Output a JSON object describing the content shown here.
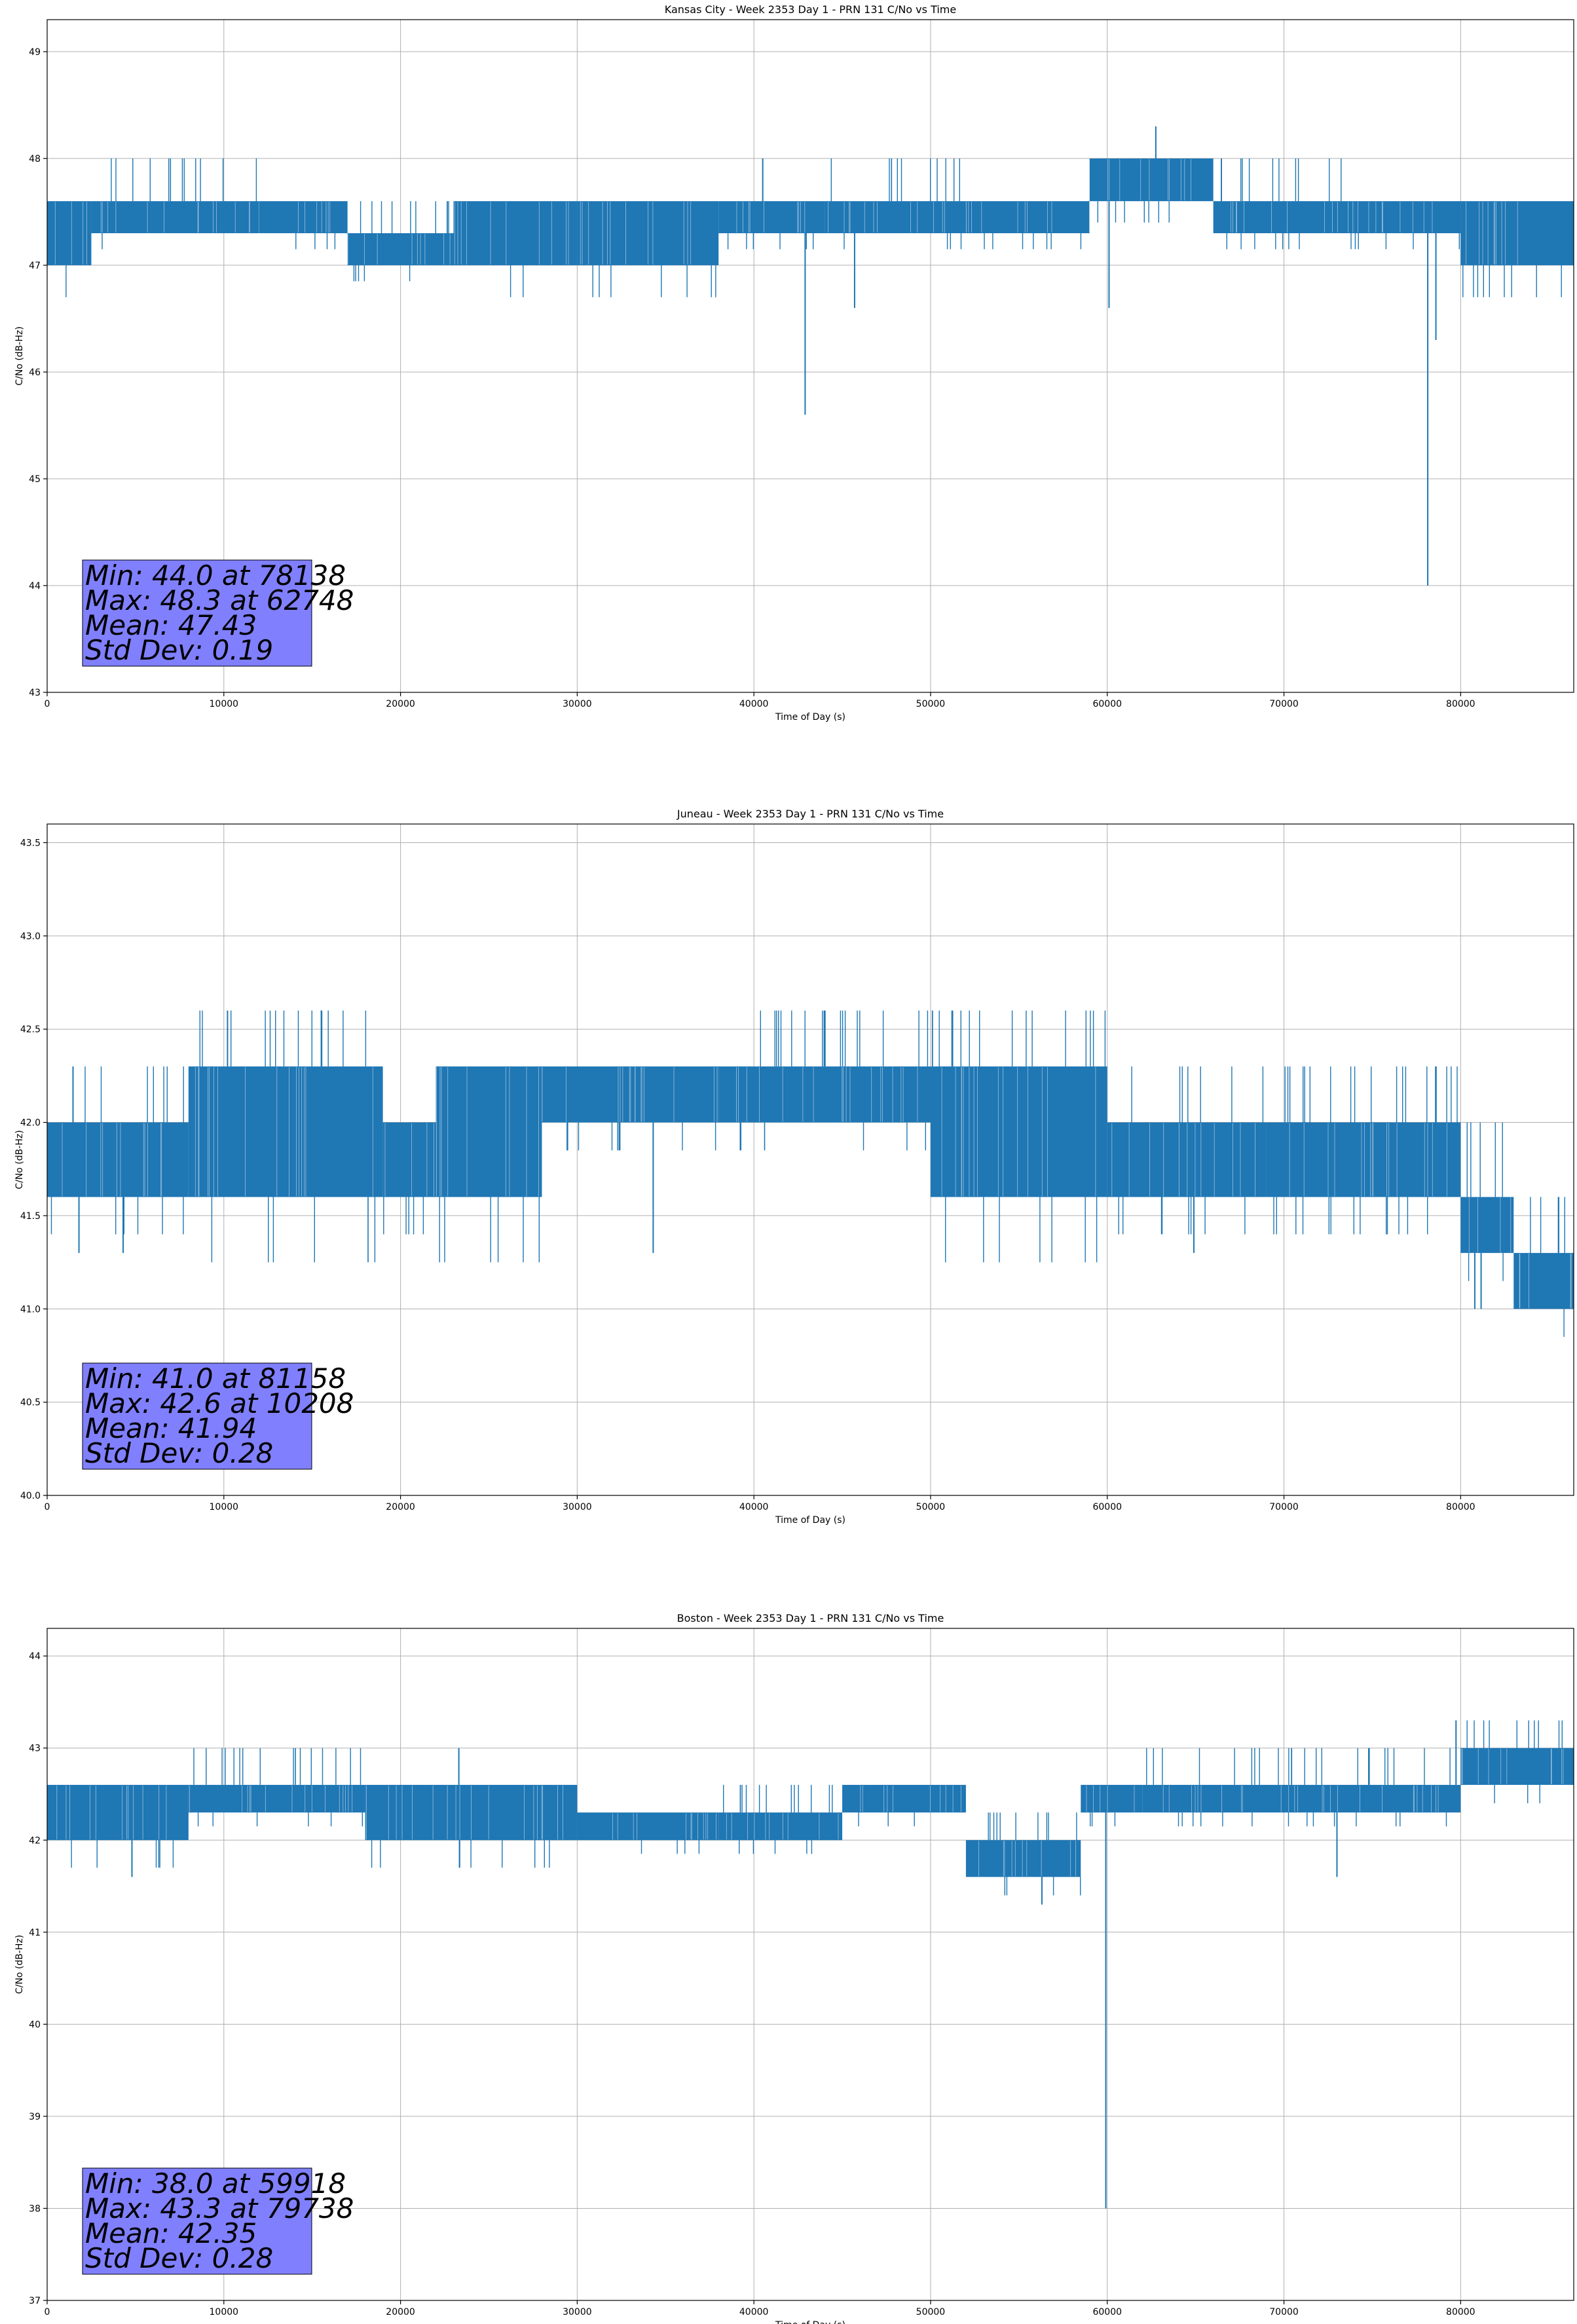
{
  "chart_data": [
    {
      "type": "line",
      "title": "Kansas City - Week 2353 Day 1 - PRN 131 C/No vs Time",
      "xlabel": "Time of Day (s)",
      "ylabel": "C/No (dB-Hz)",
      "xlim": [
        0,
        86400
      ],
      "ylim": [
        43,
        49.3
      ],
      "xticks": [
        0,
        10000,
        20000,
        30000,
        40000,
        50000,
        60000,
        70000,
        80000
      ],
      "yticks": [
        43,
        44,
        45,
        46,
        47,
        48,
        49
      ],
      "grid": true,
      "color": "#1f77b4",
      "band_segments": [
        {
          "x": [
            0,
            2500
          ],
          "y": [
            47.0,
            47.6
          ],
          "peak": 47.6
        },
        {
          "x": [
            2500,
            12000
          ],
          "y": [
            47.3,
            47.6
          ],
          "peak": 48.0
        },
        {
          "x": [
            12000,
            17000
          ],
          "y": [
            47.3,
            47.6
          ],
          "peak": 47.6
        },
        {
          "x": [
            17000,
            23000
          ],
          "y": [
            47.0,
            47.3
          ],
          "peak": 47.6
        },
        {
          "x": [
            23000,
            30000
          ],
          "y": [
            47.0,
            47.6
          ],
          "peak": 47.6
        },
        {
          "x": [
            30000,
            38000
          ],
          "y": [
            47.0,
            47.6
          ],
          "peak": 47.6
        },
        {
          "x": [
            38000,
            44000
          ],
          "y": [
            47.3,
            47.6
          ],
          "peak": 47.6
        },
        {
          "x": [
            44000,
            52000
          ],
          "y": [
            47.3,
            47.6
          ],
          "peak": 48.0
        },
        {
          "x": [
            52000,
            59000
          ],
          "y": [
            47.3,
            47.6
          ],
          "peak": 47.6
        },
        {
          "x": [
            59000,
            66000
          ],
          "y": [
            47.6,
            48.0
          ],
          "peak": 48.0
        },
        {
          "x": [
            66000,
            74000
          ],
          "y": [
            47.3,
            47.6
          ],
          "peak": 48.0
        },
        {
          "x": [
            74000,
            80000
          ],
          "y": [
            47.3,
            47.6
          ],
          "peak": 47.6
        },
        {
          "x": [
            80000,
            86400
          ],
          "y": [
            47.0,
            47.6
          ],
          "peak": 47.6
        }
      ],
      "spikes": [
        {
          "x": 42900,
          "y": 45.6
        },
        {
          "x": 45700,
          "y": 46.6
        },
        {
          "x": 40500,
          "y": 48.0
        },
        {
          "x": 60100,
          "y": 46.6
        },
        {
          "x": 62748,
          "y": 48.3
        },
        {
          "x": 78138,
          "y": 44.0
        },
        {
          "x": 78600,
          "y": 46.3
        }
      ],
      "stats": {
        "min": "Min: 44.0 at 78138",
        "max": "Max: 48.3 at 62748",
        "mean": "Mean: 47.43",
        "std": "Std Dev: 0.19"
      }
    },
    {
      "type": "line",
      "title": "Juneau - Week 2353 Day 1 - PRN 131 C/No vs Time",
      "xlabel": "Time of Day (s)",
      "ylabel": "C/No (dB-Hz)",
      "xlim": [
        0,
        86400
      ],
      "ylim": [
        40,
        43.6
      ],
      "xticks": [
        0,
        10000,
        20000,
        30000,
        40000,
        50000,
        60000,
        70000,
        80000
      ],
      "yticks": [
        40.0,
        40.5,
        41.0,
        41.5,
        42.0,
        42.5,
        43.0,
        43.5
      ],
      "grid": true,
      "color": "#1f77b4",
      "band_segments": [
        {
          "x": [
            0,
            8000
          ],
          "y": [
            41.6,
            42.0
          ],
          "peak": 42.3
        },
        {
          "x": [
            8000,
            19000
          ],
          "y": [
            41.6,
            42.3
          ],
          "peak": 42.6
        },
        {
          "x": [
            19000,
            22000
          ],
          "y": [
            41.6,
            42.0
          ],
          "peak": 42.0
        },
        {
          "x": [
            22000,
            28000
          ],
          "y": [
            41.6,
            42.3
          ],
          "peak": 42.3
        },
        {
          "x": [
            28000,
            38000
          ],
          "y": [
            42.0,
            42.3
          ],
          "peak": 42.3
        },
        {
          "x": [
            38000,
            50000
          ],
          "y": [
            42.0,
            42.3
          ],
          "peak": 42.6
        },
        {
          "x": [
            50000,
            60000
          ],
          "y": [
            41.6,
            42.3
          ],
          "peak": 42.6
        },
        {
          "x": [
            60000,
            69000
          ],
          "y": [
            41.6,
            42.0
          ],
          "peak": 42.3
        },
        {
          "x": [
            69000,
            80000
          ],
          "y": [
            41.6,
            42.0
          ],
          "peak": 42.3
        },
        {
          "x": [
            80000,
            83000
          ],
          "y": [
            41.3,
            41.6
          ],
          "peak": 42.0
        },
        {
          "x": [
            83000,
            86400
          ],
          "y": [
            41.0,
            41.3
          ],
          "peak": 41.6
        }
      ],
      "spikes": [
        {
          "x": 1800,
          "y": 41.3
        },
        {
          "x": 4300,
          "y": 41.3
        },
        {
          "x": 10208,
          "y": 42.6
        },
        {
          "x": 34300,
          "y": 41.3
        },
        {
          "x": 64900,
          "y": 41.3
        },
        {
          "x": 80800,
          "y": 41.0
        },
        {
          "x": 81158,
          "y": 41.0
        }
      ],
      "stats": {
        "min": "Min: 41.0 at 81158",
        "max": "Max: 42.6 at 10208",
        "mean": "Mean: 41.94",
        "std": "Std Dev: 0.28"
      }
    },
    {
      "type": "line",
      "title": "Boston - Week 2353 Day 1 - PRN 131 C/No vs Time",
      "xlabel": "Time of Day (s)",
      "ylabel": "C/No (dB-Hz)",
      "xlim": [
        0,
        86400
      ],
      "ylim": [
        37,
        44.3
      ],
      "xticks": [
        0,
        10000,
        20000,
        30000,
        40000,
        50000,
        60000,
        70000,
        80000
      ],
      "yticks": [
        37,
        38,
        39,
        40,
        41,
        42,
        43,
        44
      ],
      "grid": true,
      "color": "#1f77b4",
      "band_segments": [
        {
          "x": [
            0,
            8000
          ],
          "y": [
            42.0,
            42.6
          ],
          "peak": 42.6
        },
        {
          "x": [
            8000,
            18000
          ],
          "y": [
            42.3,
            42.6
          ],
          "peak": 43.0
        },
        {
          "x": [
            18000,
            30000
          ],
          "y": [
            42.0,
            42.6
          ],
          "peak": 42.6
        },
        {
          "x": [
            30000,
            38000
          ],
          "y": [
            42.0,
            42.3
          ],
          "peak": 42.3
        },
        {
          "x": [
            38000,
            45000
          ],
          "y": [
            42.0,
            42.3
          ],
          "peak": 42.6
        },
        {
          "x": [
            45000,
            52000
          ],
          "y": [
            42.3,
            42.6
          ],
          "peak": 42.6
        },
        {
          "x": [
            52000,
            58500
          ],
          "y": [
            41.6,
            42.0
          ],
          "peak": 42.3
        },
        {
          "x": [
            58500,
            62000
          ],
          "y": [
            42.3,
            42.6
          ],
          "peak": 42.6
        },
        {
          "x": [
            62000,
            73000
          ],
          "y": [
            42.3,
            42.6
          ],
          "peak": 43.0
        },
        {
          "x": [
            73000,
            80000
          ],
          "y": [
            42.3,
            42.6
          ],
          "peak": 43.0
        },
        {
          "x": [
            80000,
            86400
          ],
          "y": [
            42.6,
            43.0
          ],
          "peak": 43.3
        }
      ],
      "spikes": [
        {
          "x": 4800,
          "y": 41.6
        },
        {
          "x": 23300,
          "y": 43.0
        },
        {
          "x": 56300,
          "y": 41.3
        },
        {
          "x": 59918,
          "y": 38.0
        },
        {
          "x": 79738,
          "y": 43.3
        },
        {
          "x": 73000,
          "y": 41.6
        }
      ],
      "stats": {
        "min": "Min: 38.0 at 59918",
        "max": "Max: 43.3 at 79738",
        "mean": "Mean: 42.35",
        "std": "Std Dev: 0.28"
      }
    }
  ],
  "style": {
    "line_color": "#1f77b4",
    "stats_box_fill": "#8080ff",
    "grid_color": "#b0b0b0",
    "axis_color": "#000000"
  }
}
